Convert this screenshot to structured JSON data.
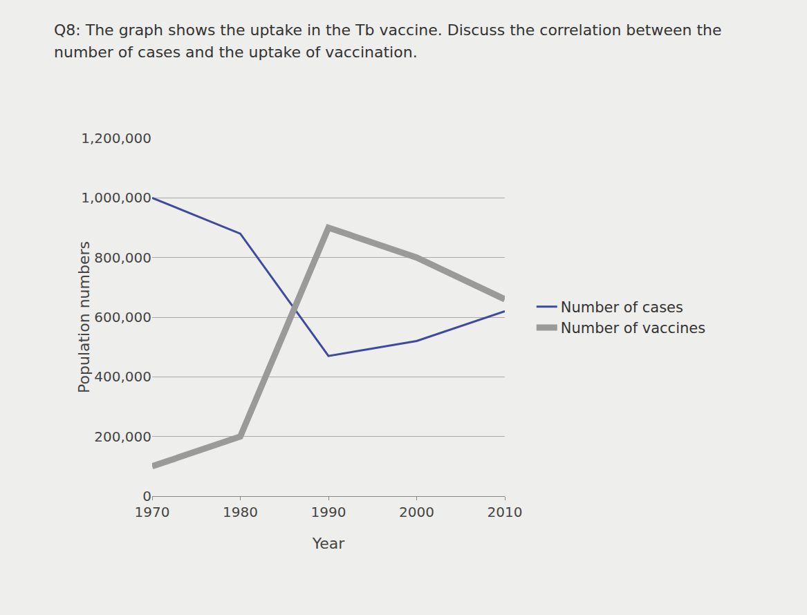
{
  "chart_data": {
    "type": "line",
    "title": "Q8: The graph shows the uptake in the Tb vaccine. Discuss the correlation between the number of cases and the uptake of vaccination.",
    "x_label": "Year",
    "y_label": "Population numbers",
    "categories": [
      "1970",
      "1980",
      "1990",
      "2000",
      "2010"
    ],
    "series": [
      {
        "name": "Number of cases",
        "color": "#3e4a9e",
        "values": [
          1000000,
          880000,
          470000,
          520000,
          620000
        ]
      },
      {
        "name": "Number of vaccines",
        "color": "#9a9a9a",
        "values": [
          100000,
          200000,
          900000,
          800000,
          660000
        ]
      }
    ],
    "ylim": [
      0,
      1200000
    ],
    "yticks": [
      0,
      {
        "value": 200000,
        "label": "200,000"
      },
      {
        "value": 400000,
        "label": "400,000"
      },
      {
        "value": 600000,
        "label": "600,000"
      },
      {
        "value": 800000,
        "label": "800,000"
      },
      {
        "value": 1000000,
        "label": "1,000,000"
      },
      {
        "value": 1200000,
        "label": "1,200,000"
      }
    ],
    "grid": true,
    "legend": "right"
  }
}
